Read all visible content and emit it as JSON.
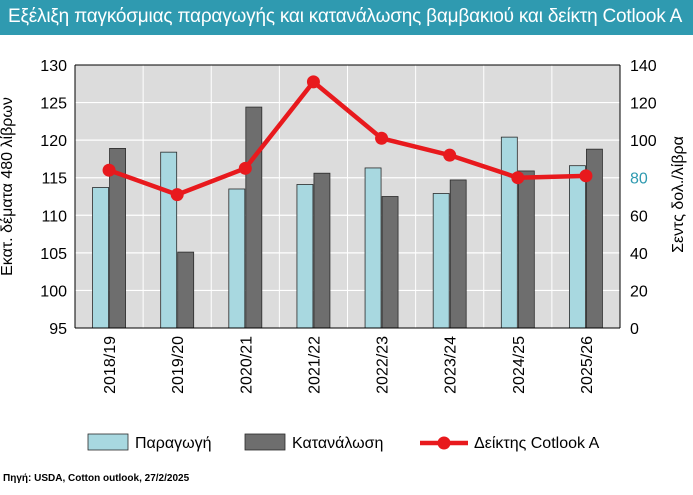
{
  "title": "Εξέλιξη παγκόσμιας παραγωγής και κατανάλωσης βαμβακιού και δείκτη Cotlook A",
  "source": "Πηγή: USDA, Cotton outlook, 27/2/2025",
  "colors": {
    "title_bg": "#2f9ab0",
    "production": "#a8d8e0",
    "consumption": "#6e6e6e",
    "index": "#e8191d",
    "plot_bg": "#dcdcdc",
    "highlight_tick": "#2f9ab0"
  },
  "chart_data": {
    "type": "bar",
    "categories": [
      "2018/19",
      "2019/20",
      "2020/21",
      "2021/22",
      "2022/23",
      "2023/24",
      "2024/25",
      "2025/26"
    ],
    "ylabel_left": "Εκατ. δέματα 480 λίβρων",
    "ylabel_right": "Σεντς δολ./λίβρα",
    "ylim_left": [
      95,
      130
    ],
    "ylim_right": [
      0,
      140
    ],
    "yticks_left": [
      "95",
      "100",
      "105",
      "110",
      "115",
      "120",
      "125",
      "130"
    ],
    "yticks_right": [
      "0",
      "20",
      "40",
      "60",
      "80",
      "100",
      "120",
      "140"
    ],
    "grid": true,
    "legend_position": "bottom",
    "series": [
      {
        "name": "Παραγωγή",
        "kind": "bar",
        "axis": "left",
        "values": [
          113.7,
          118.4,
          113.5,
          114.1,
          116.3,
          112.9,
          120.4,
          116.6
        ]
      },
      {
        "name": "Κατανάλωση",
        "kind": "bar",
        "axis": "left",
        "values": [
          118.9,
          105.1,
          124.4,
          115.6,
          112.5,
          114.7,
          115.9,
          118.8
        ]
      },
      {
        "name": "Δείκτης Cotlook A",
        "kind": "line",
        "axis": "right",
        "values": [
          84,
          71,
          85,
          131,
          101,
          92,
          80,
          81
        ]
      }
    ]
  }
}
